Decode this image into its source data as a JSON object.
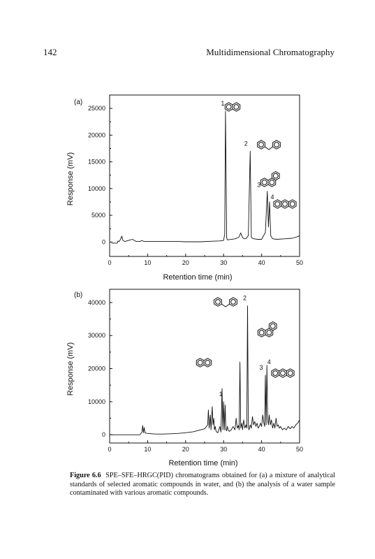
{
  "header": {
    "page_number": "142",
    "running_head": "Multidimensional Chromatography"
  },
  "caption": {
    "label": "Figure 6.6",
    "text": "SPE–SFE–HRGC(PID) chromatograms obtained for (a) a mixture of analytical standards of selected aromatic compounds in water, and (b) the analysis of a water sample contaminated with various aromatic compounds."
  },
  "chart_data": [
    {
      "type": "line",
      "panel_label": "(a)",
      "xlabel": "Retention time (min)",
      "ylabel": "Response (mV)",
      "xlim": [
        0,
        50
      ],
      "ylim": [
        -2700,
        27500
      ],
      "xticks": [
        0,
        10,
        20,
        30,
        40,
        50
      ],
      "yticks": [
        0,
        5000,
        10000,
        15000,
        20000,
        25000
      ],
      "x_tick_labels": [
        "0",
        "10",
        "20",
        "30",
        "40",
        "50"
      ],
      "y_tick_labels": [
        "0",
        "5000",
        "10000",
        "15000",
        "20000",
        "25000"
      ],
      "grid": false,
      "line_color": "#111111",
      "series": [
        {
          "x": [
            0.5,
            2.0,
            2.2,
            2.5,
            2.8,
            3.2,
            3.5,
            4.0,
            5.0,
            6.0,
            7.0,
            8.0,
            8.5,
            9.0,
            10,
            12,
            15,
            18,
            20,
            24,
            27,
            29,
            30.0,
            30.3,
            30.5,
            30.8,
            31,
            33,
            34.0,
            34.5,
            35.0,
            35.5,
            36.0,
            36.5,
            37.0,
            37.3,
            37.6,
            38,
            39,
            40,
            41.0,
            41.5,
            41.8,
            42.1,
            42.4,
            42.7,
            43,
            44,
            46,
            48,
            49.5,
            50
          ],
          "y": [
            -200,
            -200,
            200,
            100,
            400,
            1100,
            300,
            100,
            300,
            500,
            100,
            100,
            300,
            100,
            100,
            100,
            100,
            100,
            50,
            50,
            150,
            200,
            300,
            1500,
            24500,
            800,
            400,
            600,
            900,
            1700,
            800,
            600,
            700,
            1200,
            17000,
            900,
            700,
            600,
            500,
            500,
            1800,
            9500,
            2800,
            7500,
            1200,
            800,
            600,
            500,
            600,
            700,
            1000,
            1200
          ]
        }
      ],
      "peaks": [
        {
          "label": "1",
          "x": 30.5,
          "y": 24500
        },
        {
          "label": "2",
          "x": 37.0,
          "y": 17000
        },
        {
          "label": "3",
          "x": 41.5,
          "y": 9500
        },
        {
          "label": "4",
          "x": 42.1,
          "y": 7500
        }
      ]
    },
    {
      "type": "line",
      "panel_label": "(b)",
      "xlabel": "Retention time (min)",
      "ylabel": "Response (mV)",
      "xlim": [
        0,
        50
      ],
      "ylim": [
        -2500,
        44000
      ],
      "xticks": [
        0,
        10,
        20,
        30,
        40,
        50
      ],
      "yticks": [
        0,
        10000,
        20000,
        30000,
        40000
      ],
      "x_tick_labels": [
        "0",
        "10",
        "20",
        "30",
        "40",
        "50"
      ],
      "y_tick_labels": [
        "0",
        "10000",
        "20000",
        "30000",
        "40000"
      ],
      "grid": false,
      "line_color": "#111111",
      "series": [
        {
          "x": [
            0.3,
            8,
            8.5,
            8.7,
            8.9,
            9.1,
            9.3,
            9.5,
            10,
            12,
            14,
            16,
            18,
            20,
            22,
            24,
            25,
            25.5,
            25.8,
            26.0,
            26.2,
            26.5,
            26.7,
            27.0,
            27.2,
            27.4,
            27.6,
            27.8,
            28.0,
            28.2,
            28.5,
            29.0,
            29.3,
            29.6,
            29.8,
            30.0,
            30.2,
            30.4,
            30.6,
            30.8,
            31.0,
            31.2,
            31.5,
            32.0,
            32.5,
            33.0,
            33.3,
            33.6,
            33.9,
            34.1,
            34.3,
            34.5,
            34.8,
            35.0,
            35.3,
            35.6,
            35.9,
            36.1,
            36.3,
            36.5,
            36.7,
            37.0,
            37.3,
            37.6,
            37.9,
            38.2,
            38.5,
            38.8,
            39.1,
            39.4,
            39.7,
            40.0,
            40.3,
            40.6,
            40.8,
            41.0,
            41.2,
            41.4,
            41.6,
            41.8,
            42.0,
            42.3,
            42.6,
            42.9,
            43.2,
            43.5,
            43.8,
            44.1,
            44.4,
            44.7,
            45.0,
            45.5,
            46.0,
            46.5,
            47.0,
            47.5,
            48.0,
            48.5,
            49.0,
            49.5,
            50.0
          ],
          "y": [
            0,
            0,
            800,
            2800,
            600,
            2200,
            600,
            500,
            400,
            200,
            200,
            300,
            400,
            600,
            900,
            1500,
            1800,
            2500,
            3000,
            7500,
            2000,
            6000,
            1500,
            8500,
            3000,
            5000,
            1500,
            2500,
            1200,
            800,
            600,
            2500,
            800,
            14000,
            1500,
            10000,
            1500,
            9000,
            1500,
            1200,
            2500,
            1500,
            1000,
            1500,
            2500,
            1500,
            5000,
            2000,
            2800,
            1500,
            22000,
            2000,
            3500,
            1500,
            4500,
            2000,
            3000,
            2000,
            39000,
            2500,
            1500,
            3000,
            2000,
            5500,
            3000,
            4000,
            2500,
            3500,
            2000,
            2500,
            3500,
            2500,
            6000,
            3500,
            2500,
            18000,
            3000,
            21000,
            4500,
            3000,
            6000,
            3000,
            4500,
            2000,
            3500,
            2000,
            5000,
            2500,
            3000,
            2000,
            2500,
            1500,
            2000,
            1500,
            2500,
            1800,
            2500,
            2000,
            3000,
            3500,
            4500
          ]
        }
      ],
      "peaks": [
        {
          "label": "1",
          "x": 30.0,
          "y": 10000
        },
        {
          "label": "2",
          "x": 36.3,
          "y": 39000
        },
        {
          "label": "3",
          "x": 41.0,
          "y": 18000
        },
        {
          "label": "4",
          "x": 41.4,
          "y": 21000
        }
      ]
    }
  ]
}
